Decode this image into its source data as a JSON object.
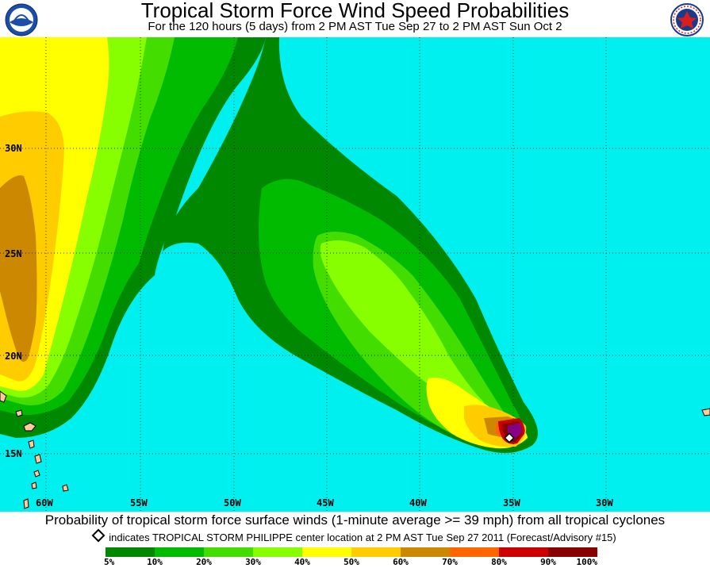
{
  "header": {
    "title": "Tropical Storm Force Wind Speed Probabilities",
    "subtitle": "For the 120 hours (5 days) from 2 PM AST Tue Sep 27 to 2 PM AST Sun Oct 2",
    "left_logo_icon": "noaa-logo-icon",
    "right_logo_icon": "nws-logo-icon"
  },
  "map": {
    "latitude_labels": [
      "30N",
      "25N",
      "20N",
      "15N"
    ],
    "longitude_labels": [
      "60W",
      "55W",
      "50W",
      "45W",
      "40W",
      "35W",
      "30W"
    ],
    "storm_marker_icon": "diamond-icon",
    "ocean_color": "#00f0f0"
  },
  "footer": {
    "caption": "Probability of tropical storm force surface winds (1-minute average >= 39 mph) from all tropical cyclones",
    "marker_note": "indicates TROPICAL STORM PHILIPPE center location at 2 PM AST Tue Sep 27 2011 (Forecast/Advisory #15)"
  },
  "legend": {
    "colors": [
      "#008800",
      "#00bb00",
      "#44dd00",
      "#88ff00",
      "#ffff00",
      "#ffcc00",
      "#cc8800",
      "#ff6600",
      "#cc0000",
      "#880000",
      "#880088"
    ],
    "labels": [
      "5%",
      "10%",
      "20%",
      "30%",
      "40%",
      "50%",
      "60%",
      "70%",
      "80%",
      "90%",
      "100%"
    ]
  }
}
